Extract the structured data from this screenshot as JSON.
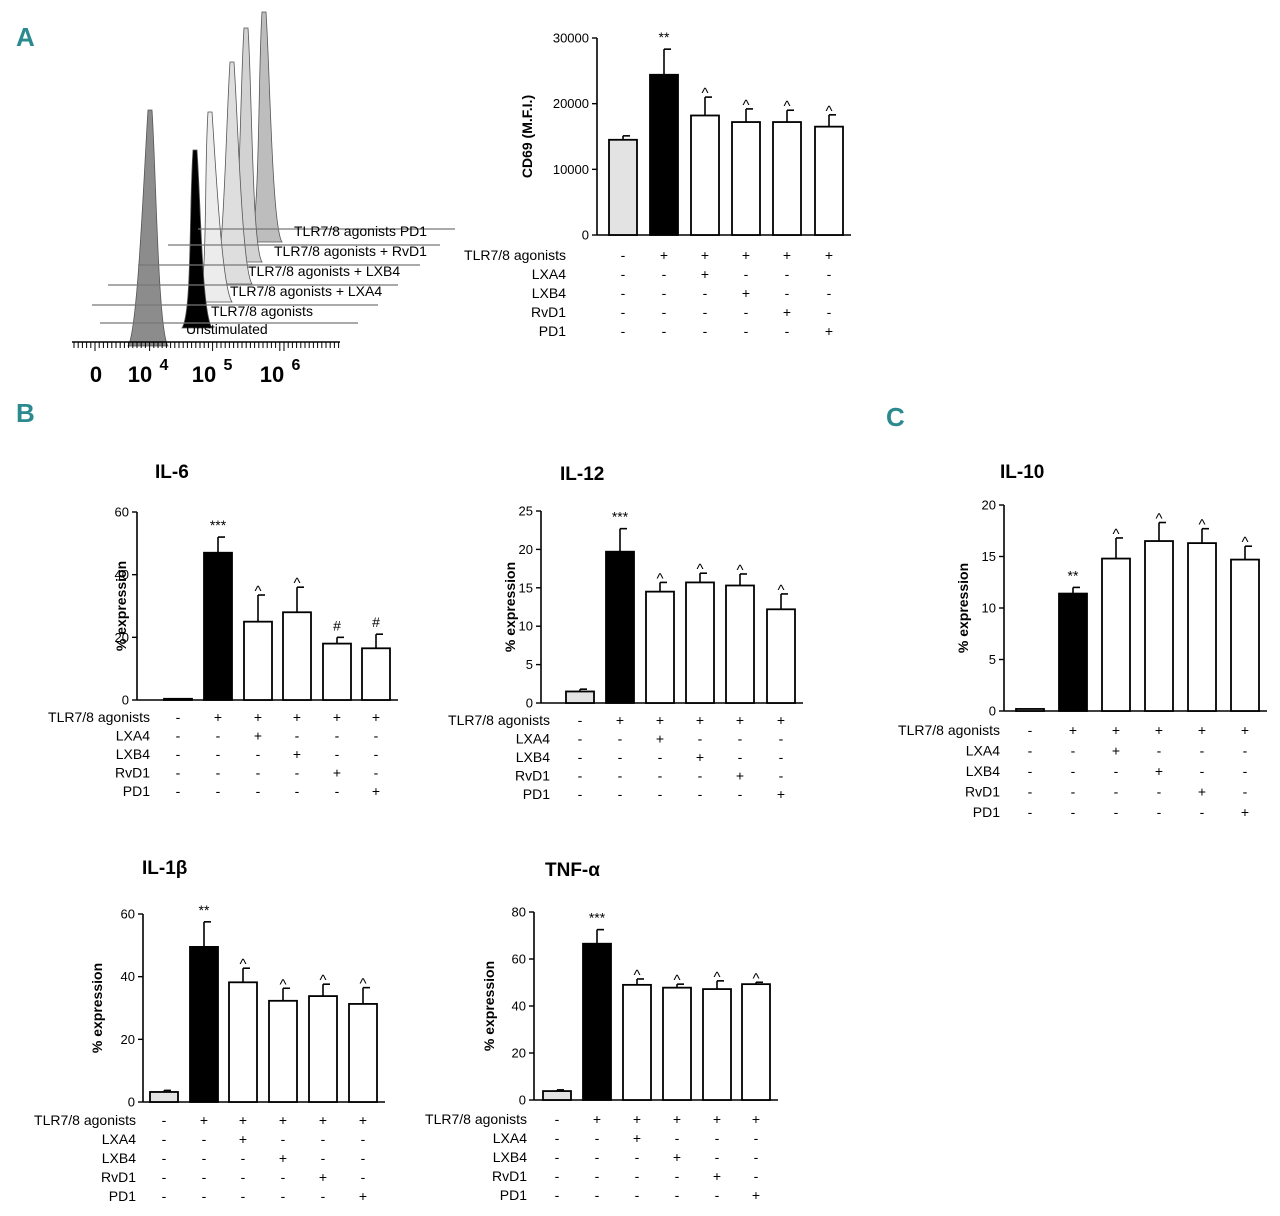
{
  "panels": {
    "a": "A",
    "b": "B",
    "c": "C"
  },
  "histogram": {
    "x_ticks": [
      "0",
      "10",
      "10",
      "10"
    ],
    "x_tick_exponents": [
      "",
      "4",
      "5",
      "6"
    ],
    "labels": [
      "TLR7/8 agonists  PD1",
      "TLR7/8 agonists + RvD1",
      "TLR7/8 agonists + LXB4",
      "TLR7/8 agonists + LXA4",
      "TLR7/8 agonists",
      "Unstimulated"
    ]
  },
  "treatment_rows": [
    "TLR7/8 agonists",
    "LXA4",
    "LXB4",
    "RvD1",
    "PD1"
  ],
  "treatment_matrix": [
    [
      "-",
      "+",
      "+",
      "+",
      "+",
      "+"
    ],
    [
      "-",
      "-",
      "+",
      "-",
      "-",
      "-"
    ],
    [
      "-",
      "-",
      "-",
      "+",
      "-",
      "-"
    ],
    [
      "-",
      "-",
      "-",
      "-",
      "+",
      "-"
    ],
    [
      "-",
      "-",
      "-",
      "-",
      "-",
      "+"
    ]
  ],
  "chart_data": [
    {
      "id": "cd69",
      "type": "bar",
      "title": "",
      "ylabel": "CD69 (M.F.I.)",
      "ylim": [
        0,
        30000
      ],
      "yticks": [
        0,
        10000,
        20000,
        30000
      ],
      "values": [
        14500,
        24400,
        18200,
        17200,
        17200,
        16500
      ],
      "errors": [
        600,
        3900,
        2800,
        2000,
        1800,
        1800
      ],
      "annotations": [
        "",
        "**",
        "^",
        "^",
        "^",
        "^"
      ]
    },
    {
      "id": "il6",
      "type": "bar",
      "title": "IL-6",
      "ylabel": "% expression",
      "ylim": [
        0,
        60
      ],
      "yticks": [
        0,
        20,
        40,
        60
      ],
      "values": [
        0.3,
        47,
        25,
        28,
        18,
        16.5
      ],
      "errors": [
        0,
        5,
        8.5,
        8,
        2,
        4.5
      ],
      "annotations": [
        "",
        "***",
        "^",
        "^",
        "#",
        "#"
      ]
    },
    {
      "id": "il12",
      "type": "bar",
      "title": "IL-12",
      "ylabel": "% expression",
      "ylim": [
        0,
        25
      ],
      "yticks": [
        0,
        5,
        10,
        15,
        20,
        25
      ],
      "values": [
        1.5,
        19.7,
        14.5,
        15.7,
        15.3,
        12.2
      ],
      "errors": [
        0.3,
        3,
        1.2,
        1.2,
        1.5,
        2
      ],
      "annotations": [
        "",
        "***",
        "^",
        "^",
        "^",
        "^"
      ]
    },
    {
      "id": "il10",
      "type": "bar",
      "title": "IL-10",
      "ylabel": "% expression",
      "ylim": [
        0,
        20
      ],
      "yticks": [
        0,
        5,
        10,
        15,
        20
      ],
      "values": [
        0.2,
        11.4,
        14.8,
        16.5,
        16.3,
        14.7
      ],
      "errors": [
        0,
        0.6,
        2,
        1.8,
        1.4,
        1.3
      ],
      "annotations": [
        "",
        "**",
        "^",
        "^",
        "^",
        "^"
      ]
    },
    {
      "id": "il1b",
      "type": "bar",
      "title": "IL-1β",
      "ylabel": "% expression",
      "ylim": [
        0,
        60
      ],
      "yticks": [
        0,
        20,
        40,
        60
      ],
      "values": [
        3.2,
        49.5,
        38.2,
        32.3,
        33.8,
        31.3
      ],
      "errors": [
        0.5,
        8,
        4.5,
        4,
        3.8,
        5.2
      ],
      "annotations": [
        "",
        "**",
        "^",
        "^",
        "^",
        "^"
      ]
    },
    {
      "id": "tnfa",
      "type": "bar",
      "title": "TNF-α",
      "ylabel": "% expression",
      "ylim": [
        0,
        80
      ],
      "yticks": [
        0,
        20,
        40,
        60,
        80
      ],
      "values": [
        3.8,
        66.5,
        49,
        47.8,
        47.2,
        49.3
      ],
      "errors": [
        0.5,
        6,
        2.5,
        1.5,
        3.5,
        0.8
      ],
      "annotations": [
        "",
        "***",
        "^",
        "^",
        "^",
        "^"
      ]
    }
  ],
  "colors": {
    "unstimulated": "#e3e3e3",
    "agonists": "#000000",
    "treated": "#ffffff",
    "panel_letter": "#2a8a8f"
  }
}
